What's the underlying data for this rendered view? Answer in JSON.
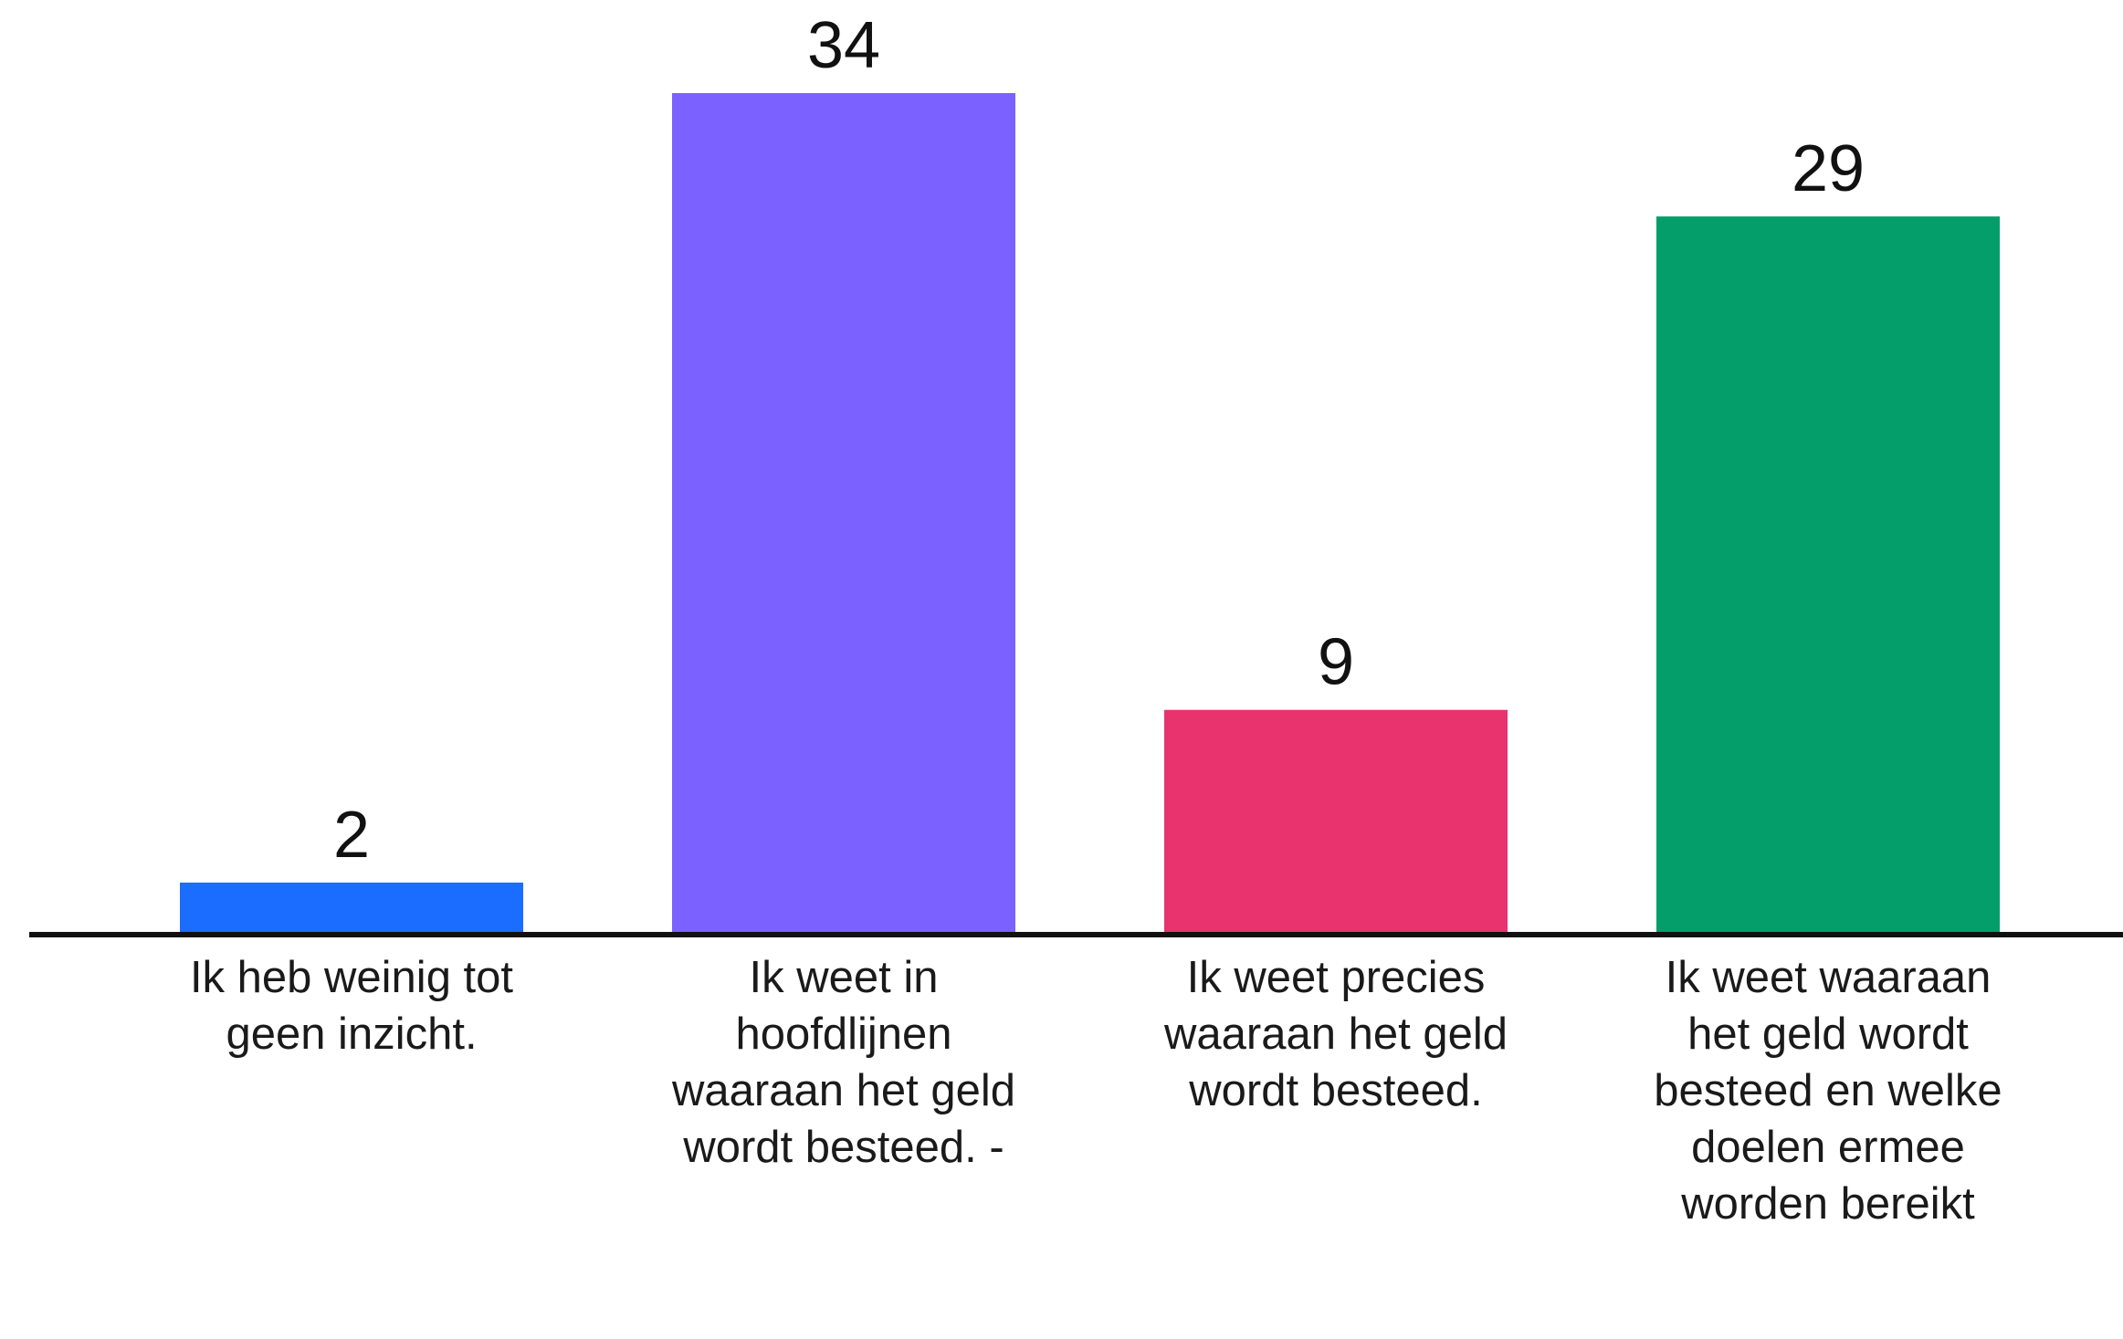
{
  "chart_data": {
    "type": "bar",
    "title": "",
    "xlabel": "",
    "ylabel": "",
    "ylim": [
      0,
      34
    ],
    "grid": false,
    "legend": "none",
    "categories": [
      "Ik heb weinig tot geen inzicht.",
      "Ik weet in hoofdlijnen waaraan het geld wordt besteed. -",
      "Ik weet precies waaraan het geld wordt besteed.",
      "Ik weet waaraan het geld wordt besteed en welke doelen ermee worden bereikt"
    ],
    "values": [
      2,
      34,
      9,
      29
    ],
    "value_labels": [
      "2",
      "34",
      "9",
      "29"
    ],
    "colors": [
      "#1a6dff",
      "#7b61ff",
      "#e8336f",
      "#039e6a"
    ]
  }
}
